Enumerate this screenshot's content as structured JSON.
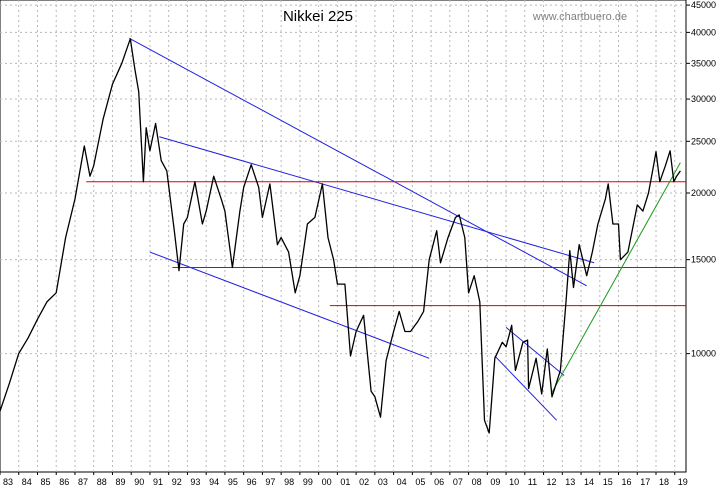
{
  "chart_data": {
    "type": "line",
    "title": "Nikkei 225",
    "watermark": "www.chartbuero.de",
    "y_scale": "log",
    "ylim": [
      6000,
      46000
    ],
    "xlim": [
      1983.0,
      2019.6
    ],
    "grid": "dotted",
    "y_ticks": [
      {
        "value": 45000,
        "label": "45000"
      },
      {
        "value": 40000,
        "label": "40000"
      },
      {
        "value": 35000,
        "label": "35000"
      },
      {
        "value": 30000,
        "label": "30000"
      },
      {
        "value": 25000,
        "label": "25000"
      },
      {
        "value": 20000,
        "label": "20000"
      },
      {
        "value": 15000,
        "label": "15000"
      },
      {
        "value": 10000,
        "label": "10000"
      }
    ],
    "x_ticks": [
      "83",
      "84",
      "85",
      "86",
      "87",
      "88",
      "89",
      "90",
      "91",
      "92",
      "93",
      "94",
      "95",
      "96",
      "97",
      "98",
      "99",
      "00",
      "01",
      "02",
      "03",
      "04",
      "05",
      "06",
      "07",
      "08",
      "09",
      "10",
      "11",
      "12",
      "13",
      "14",
      "15",
      "16",
      "17",
      "18",
      "19"
    ],
    "series": [
      {
        "color": "#000000",
        "points": [
          [
            1983.0,
            7800
          ],
          [
            1983.5,
            8800
          ],
          [
            1984.0,
            10000
          ],
          [
            1984.5,
            10700
          ],
          [
            1985.0,
            11600
          ],
          [
            1985.5,
            12500
          ],
          [
            1986.0,
            13000
          ],
          [
            1986.5,
            16500
          ],
          [
            1987.0,
            19500
          ],
          [
            1987.5,
            24500
          ],
          [
            1987.8,
            21500
          ],
          [
            1988.0,
            22500
          ],
          [
            1988.5,
            27500
          ],
          [
            1989.0,
            32000
          ],
          [
            1989.5,
            35000
          ],
          [
            1989.95,
            38900
          ],
          [
            1990.2,
            34000
          ],
          [
            1990.4,
            31000
          ],
          [
            1990.65,
            21000
          ],
          [
            1990.8,
            26500
          ],
          [
            1991.0,
            24000
          ],
          [
            1991.3,
            27000
          ],
          [
            1991.6,
            23000
          ],
          [
            1991.9,
            22000
          ],
          [
            1992.3,
            17000
          ],
          [
            1992.55,
            14300
          ],
          [
            1992.8,
            17500
          ],
          [
            1993.0,
            18000
          ],
          [
            1993.4,
            21000
          ],
          [
            1993.8,
            17500
          ],
          [
            1994.0,
            18500
          ],
          [
            1994.4,
            21500
          ],
          [
            1994.8,
            19500
          ],
          [
            1995.0,
            18500
          ],
          [
            1995.4,
            14500
          ],
          [
            1995.8,
            18500
          ],
          [
            1996.0,
            20500
          ],
          [
            1996.4,
            22600
          ],
          [
            1996.8,
            20500
          ],
          [
            1997.0,
            18000
          ],
          [
            1997.4,
            20800
          ],
          [
            1997.8,
            16000
          ],
          [
            1998.0,
            16500
          ],
          [
            1998.4,
            15500
          ],
          [
            1998.75,
            13000
          ],
          [
            1999.0,
            14000
          ],
          [
            1999.4,
            17500
          ],
          [
            1999.8,
            18000
          ],
          [
            2000.2,
            20800
          ],
          [
            2000.5,
            16500
          ],
          [
            2000.8,
            15000
          ],
          [
            2001.0,
            13500
          ],
          [
            2001.4,
            13500
          ],
          [
            2001.7,
            9900
          ],
          [
            2002.0,
            11000
          ],
          [
            2002.4,
            11800
          ],
          [
            2002.8,
            8500
          ],
          [
            2003.0,
            8300
          ],
          [
            2003.3,
            7600
          ],
          [
            2003.6,
            9700
          ],
          [
            2004.0,
            11000
          ],
          [
            2004.3,
            12000
          ],
          [
            2004.6,
            11000
          ],
          [
            2004.9,
            11000
          ],
          [
            2005.3,
            11500
          ],
          [
            2005.6,
            12000
          ],
          [
            2005.9,
            15000
          ],
          [
            2006.3,
            17000
          ],
          [
            2006.5,
            14800
          ],
          [
            2006.9,
            16500
          ],
          [
            2007.3,
            18000
          ],
          [
            2007.5,
            18200
          ],
          [
            2007.8,
            16500
          ],
          [
            2008.0,
            13000
          ],
          [
            2008.3,
            14000
          ],
          [
            2008.6,
            12500
          ],
          [
            2008.85,
            7500
          ],
          [
            2009.1,
            7100
          ],
          [
            2009.4,
            9800
          ],
          [
            2009.8,
            10500
          ],
          [
            2010.0,
            10300
          ],
          [
            2010.3,
            11300
          ],
          [
            2010.5,
            9300
          ],
          [
            2010.9,
            10500
          ],
          [
            2011.15,
            10600
          ],
          [
            2011.2,
            8600
          ],
          [
            2011.6,
            9800
          ],
          [
            2011.9,
            8400
          ],
          [
            2012.2,
            10200
          ],
          [
            2012.45,
            8300
          ],
          [
            2012.9,
            9300
          ],
          [
            2013.2,
            12500
          ],
          [
            2013.4,
            15600
          ],
          [
            2013.6,
            13300
          ],
          [
            2013.9,
            16000
          ],
          [
            2014.3,
            14000
          ],
          [
            2014.6,
            15500
          ],
          [
            2014.9,
            17500
          ],
          [
            2015.3,
            19500
          ],
          [
            2015.45,
            20800
          ],
          [
            2015.7,
            17500
          ],
          [
            2016.0,
            17500
          ],
          [
            2016.1,
            15000
          ],
          [
            2016.5,
            15500
          ],
          [
            2016.8,
            17500
          ],
          [
            2017.0,
            19000
          ],
          [
            2017.3,
            18500
          ],
          [
            2017.6,
            20000
          ],
          [
            2017.9,
            22800
          ],
          [
            2018.0,
            23900
          ],
          [
            2018.2,
            21000
          ],
          [
            2018.5,
            22500
          ],
          [
            2018.75,
            24000
          ],
          [
            2018.95,
            21000
          ],
          [
            2019.1,
            21500
          ],
          [
            2019.3,
            22000
          ]
        ]
      }
    ],
    "trendlines": [
      {
        "color": "#2020e0",
        "points": [
          [
            1989.9,
            39000
          ],
          [
            2014.3,
            13400
          ]
        ]
      },
      {
        "color": "#2020e0",
        "points": [
          [
            1991.5,
            25500
          ],
          [
            2014.7,
            14800
          ]
        ]
      },
      {
        "color": "#2020e0",
        "points": [
          [
            1991.0,
            15500
          ],
          [
            2005.9,
            9800
          ]
        ]
      },
      {
        "color": "#2020e0",
        "points": [
          [
            2010.0,
            11200
          ],
          [
            2013.1,
            9100
          ]
        ]
      },
      {
        "color": "#2020e0",
        "points": [
          [
            2009.4,
            9900
          ],
          [
            2012.7,
            7500
          ]
        ]
      },
      {
        "color": "#e00000",
        "points": [
          [
            1987.6,
            21000
          ],
          [
            2019.6,
            21000
          ]
        ]
      },
      {
        "color": "#e00000",
        "points": [
          [
            1992.2,
            14500
          ],
          [
            2019.6,
            14500
          ]
        ]
      },
      {
        "color": "#e00000",
        "points": [
          [
            2000.6,
            12300
          ],
          [
            2019.6,
            12300
          ]
        ]
      },
      {
        "color": "#1a9a1a",
        "points": [
          [
            2012.4,
            8400
          ],
          [
            2019.3,
            22800
          ]
        ]
      }
    ]
  }
}
